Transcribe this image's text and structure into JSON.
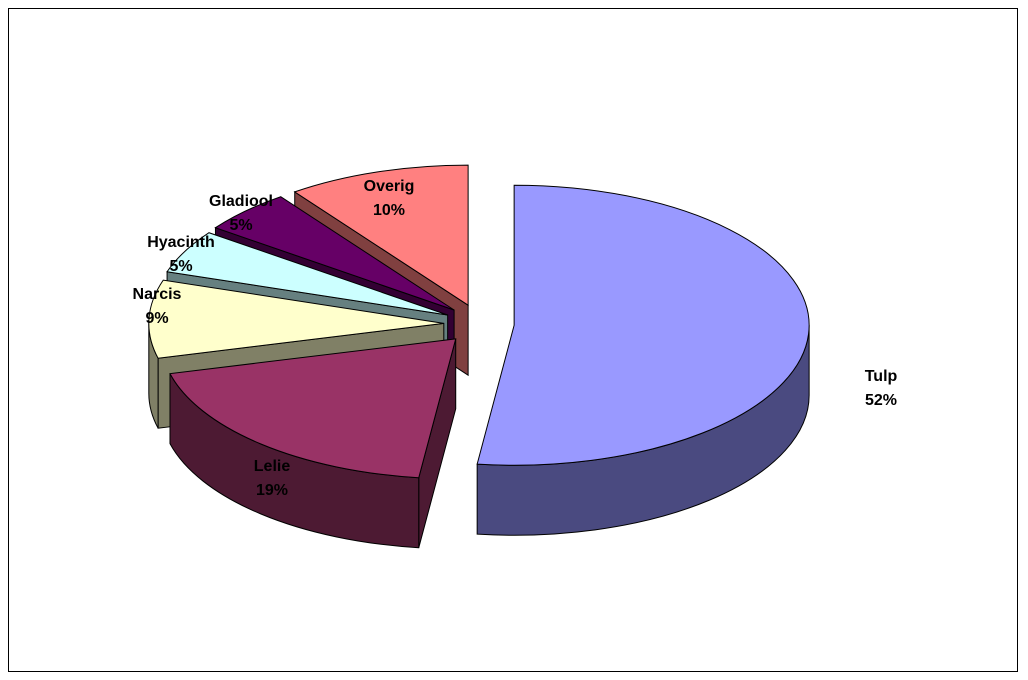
{
  "chart_data": {
    "type": "pie",
    "style": "3d-exploded",
    "title": "",
    "legend": "none",
    "slices": [
      {
        "name": "Tulp",
        "percent_label": "52%",
        "value": 52,
        "color": "#9999ff",
        "side_color": "#4a4a80"
      },
      {
        "name": "Lelie",
        "percent_label": "19%",
        "value": 19,
        "color": "#993366",
        "side_color": "#4d1a33"
      },
      {
        "name": "Narcis",
        "percent_label": "9%",
        "value": 9,
        "color": "#ffffcc",
        "side_color": "#808066"
      },
      {
        "name": "Hyacinth",
        "percent_label": "5%",
        "value": 5,
        "color": "#ccffff",
        "side_color": "#668080"
      },
      {
        "name": "Gladiool",
        "percent_label": "5%",
        "value": 5,
        "color": "#660066",
        "side_color": "#330033"
      },
      {
        "name": "Overig",
        "percent_label": "10%",
        "value": 10,
        "color": "#ff8080",
        "side_color": "#804040"
      }
    ]
  }
}
